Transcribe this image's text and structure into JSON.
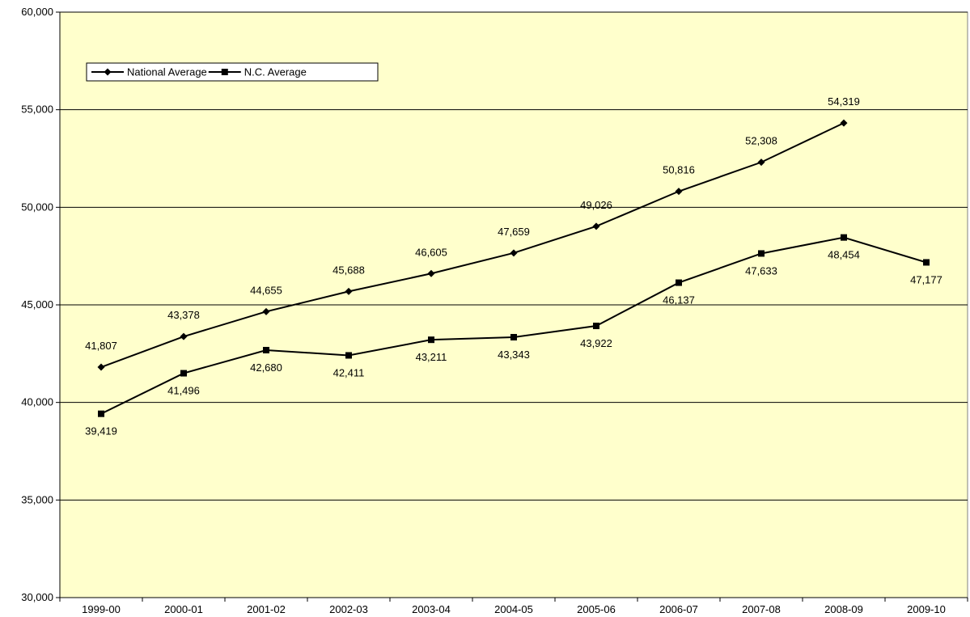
{
  "chart_data": {
    "type": "line",
    "title": "",
    "xlabel": "",
    "ylabel": "",
    "categories": [
      "1999-00",
      "2000-01",
      "2001-02",
      "2002-03",
      "2003-04",
      "2004-05",
      "2005-06",
      "2006-07",
      "2007-08",
      "2008-09",
      "2009-10"
    ],
    "series": [
      {
        "name": "National Average",
        "marker": "diamond",
        "color": "#000000",
        "values": [
          41807,
          43378,
          44655,
          45688,
          46605,
          47659,
          49026,
          50816,
          52308,
          54319,
          null
        ],
        "labels": [
          "41,807",
          "43,378",
          "44,655",
          "45,688",
          "46,605",
          "47,659",
          "49,026",
          "50,816",
          "52,308",
          "54,319",
          ""
        ]
      },
      {
        "name": "N.C. Average",
        "marker": "square",
        "color": "#000000",
        "values": [
          39419,
          41496,
          42680,
          42411,
          43211,
          43343,
          43922,
          46137,
          47633,
          48454,
          47177
        ],
        "labels": [
          "39,419",
          "41,496",
          "42,680",
          "42,411",
          "43,211",
          "43,343",
          "43,922",
          "46,137",
          "47,633",
          "48,454",
          "47,177"
        ]
      }
    ],
    "ylim": [
      30000,
      60000
    ],
    "yticks": [
      30000,
      35000,
      40000,
      45000,
      50000,
      55000,
      60000
    ],
    "ytick_labels": [
      "30,000",
      "35,000",
      "40,000",
      "45,000",
      "50,000",
      "55,000",
      "60,000"
    ],
    "grid": true,
    "legend_position": "top-left",
    "plot_background": "#FFFFCC"
  }
}
